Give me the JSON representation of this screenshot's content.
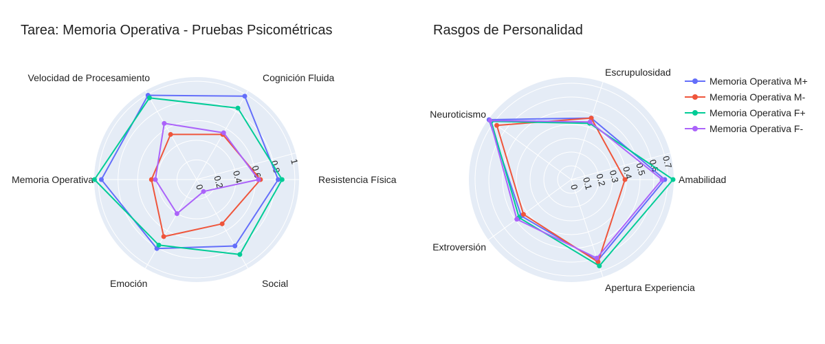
{
  "colors": {
    "plot_bg": "#E5ECF6",
    "grid": "#ffffff",
    "series": [
      "#636EFA",
      "#EF553B",
      "#00CC96",
      "#AB63FA"
    ]
  },
  "chart_data": [
    {
      "type": "radar",
      "title": "Tarea: Memoria Operativa - Pruebas Psicométricas",
      "axes": [
        "Resistencia Física",
        "Cognición Fluida",
        "Velocidad de Procesamiento",
        "Memoria Operativa",
        "Emoción",
        "Social"
      ],
      "radial_range": [
        0,
        1.05
      ],
      "radial_ticks": [
        0,
        0.2,
        0.4,
        0.6,
        0.8,
        1
      ],
      "radial_tick_labels": [
        "0",
        "0.2",
        "0.4",
        "0.6",
        "0.8",
        "1"
      ],
      "grid": true,
      "series": [
        {
          "name": "Memoria Operativa M+",
          "values": [
            0.83,
            0.98,
            0.99,
            0.97,
            0.81,
            0.78
          ]
        },
        {
          "name": "Memoria Operativa M-",
          "values": [
            0.65,
            0.53,
            0.53,
            0.46,
            0.67,
            0.52
          ]
        },
        {
          "name": "Memoria Operativa F+",
          "values": [
            0.87,
            0.84,
            0.96,
            1.04,
            0.77,
            0.88
          ]
        },
        {
          "name": "Memoria Operativa F-",
          "values": [
            0.63,
            0.55,
            0.66,
            0.42,
            0.4,
            0.14
          ]
        }
      ]
    },
    {
      "type": "radar",
      "title": "Rasgos de Personalidad",
      "axes": [
        "Amabilidad",
        "Escrupulosidad",
        "Neuroticismo",
        "Extroversión",
        "Apertura Experiencia"
      ],
      "radial_range": [
        0,
        0.75
      ],
      "radial_ticks": [
        0,
        0.1,
        0.2,
        0.3,
        0.4,
        0.5,
        0.6,
        0.7
      ],
      "radial_tick_labels": [
        "0",
        "0.1",
        "0.2",
        "0.3",
        "0.4",
        "0.5",
        "0.6",
        "0.7"
      ],
      "grid": true,
      "legend_position": "top-right",
      "series": [
        {
          "name": "Memoria Operativa M+",
          "values": [
            0.68,
            0.47,
            0.74,
            0.45,
            0.62
          ]
        },
        {
          "name": "Memoria Operativa M-",
          "values": [
            0.39,
            0.47,
            0.67,
            0.43,
            0.63
          ]
        },
        {
          "name": "Memoria Operativa F+",
          "values": [
            0.74,
            0.43,
            0.72,
            0.47,
            0.66
          ]
        },
        {
          "name": "Memoria Operativa F-",
          "values": [
            0.66,
            0.44,
            0.73,
            0.49,
            0.6
          ]
        }
      ]
    }
  ]
}
